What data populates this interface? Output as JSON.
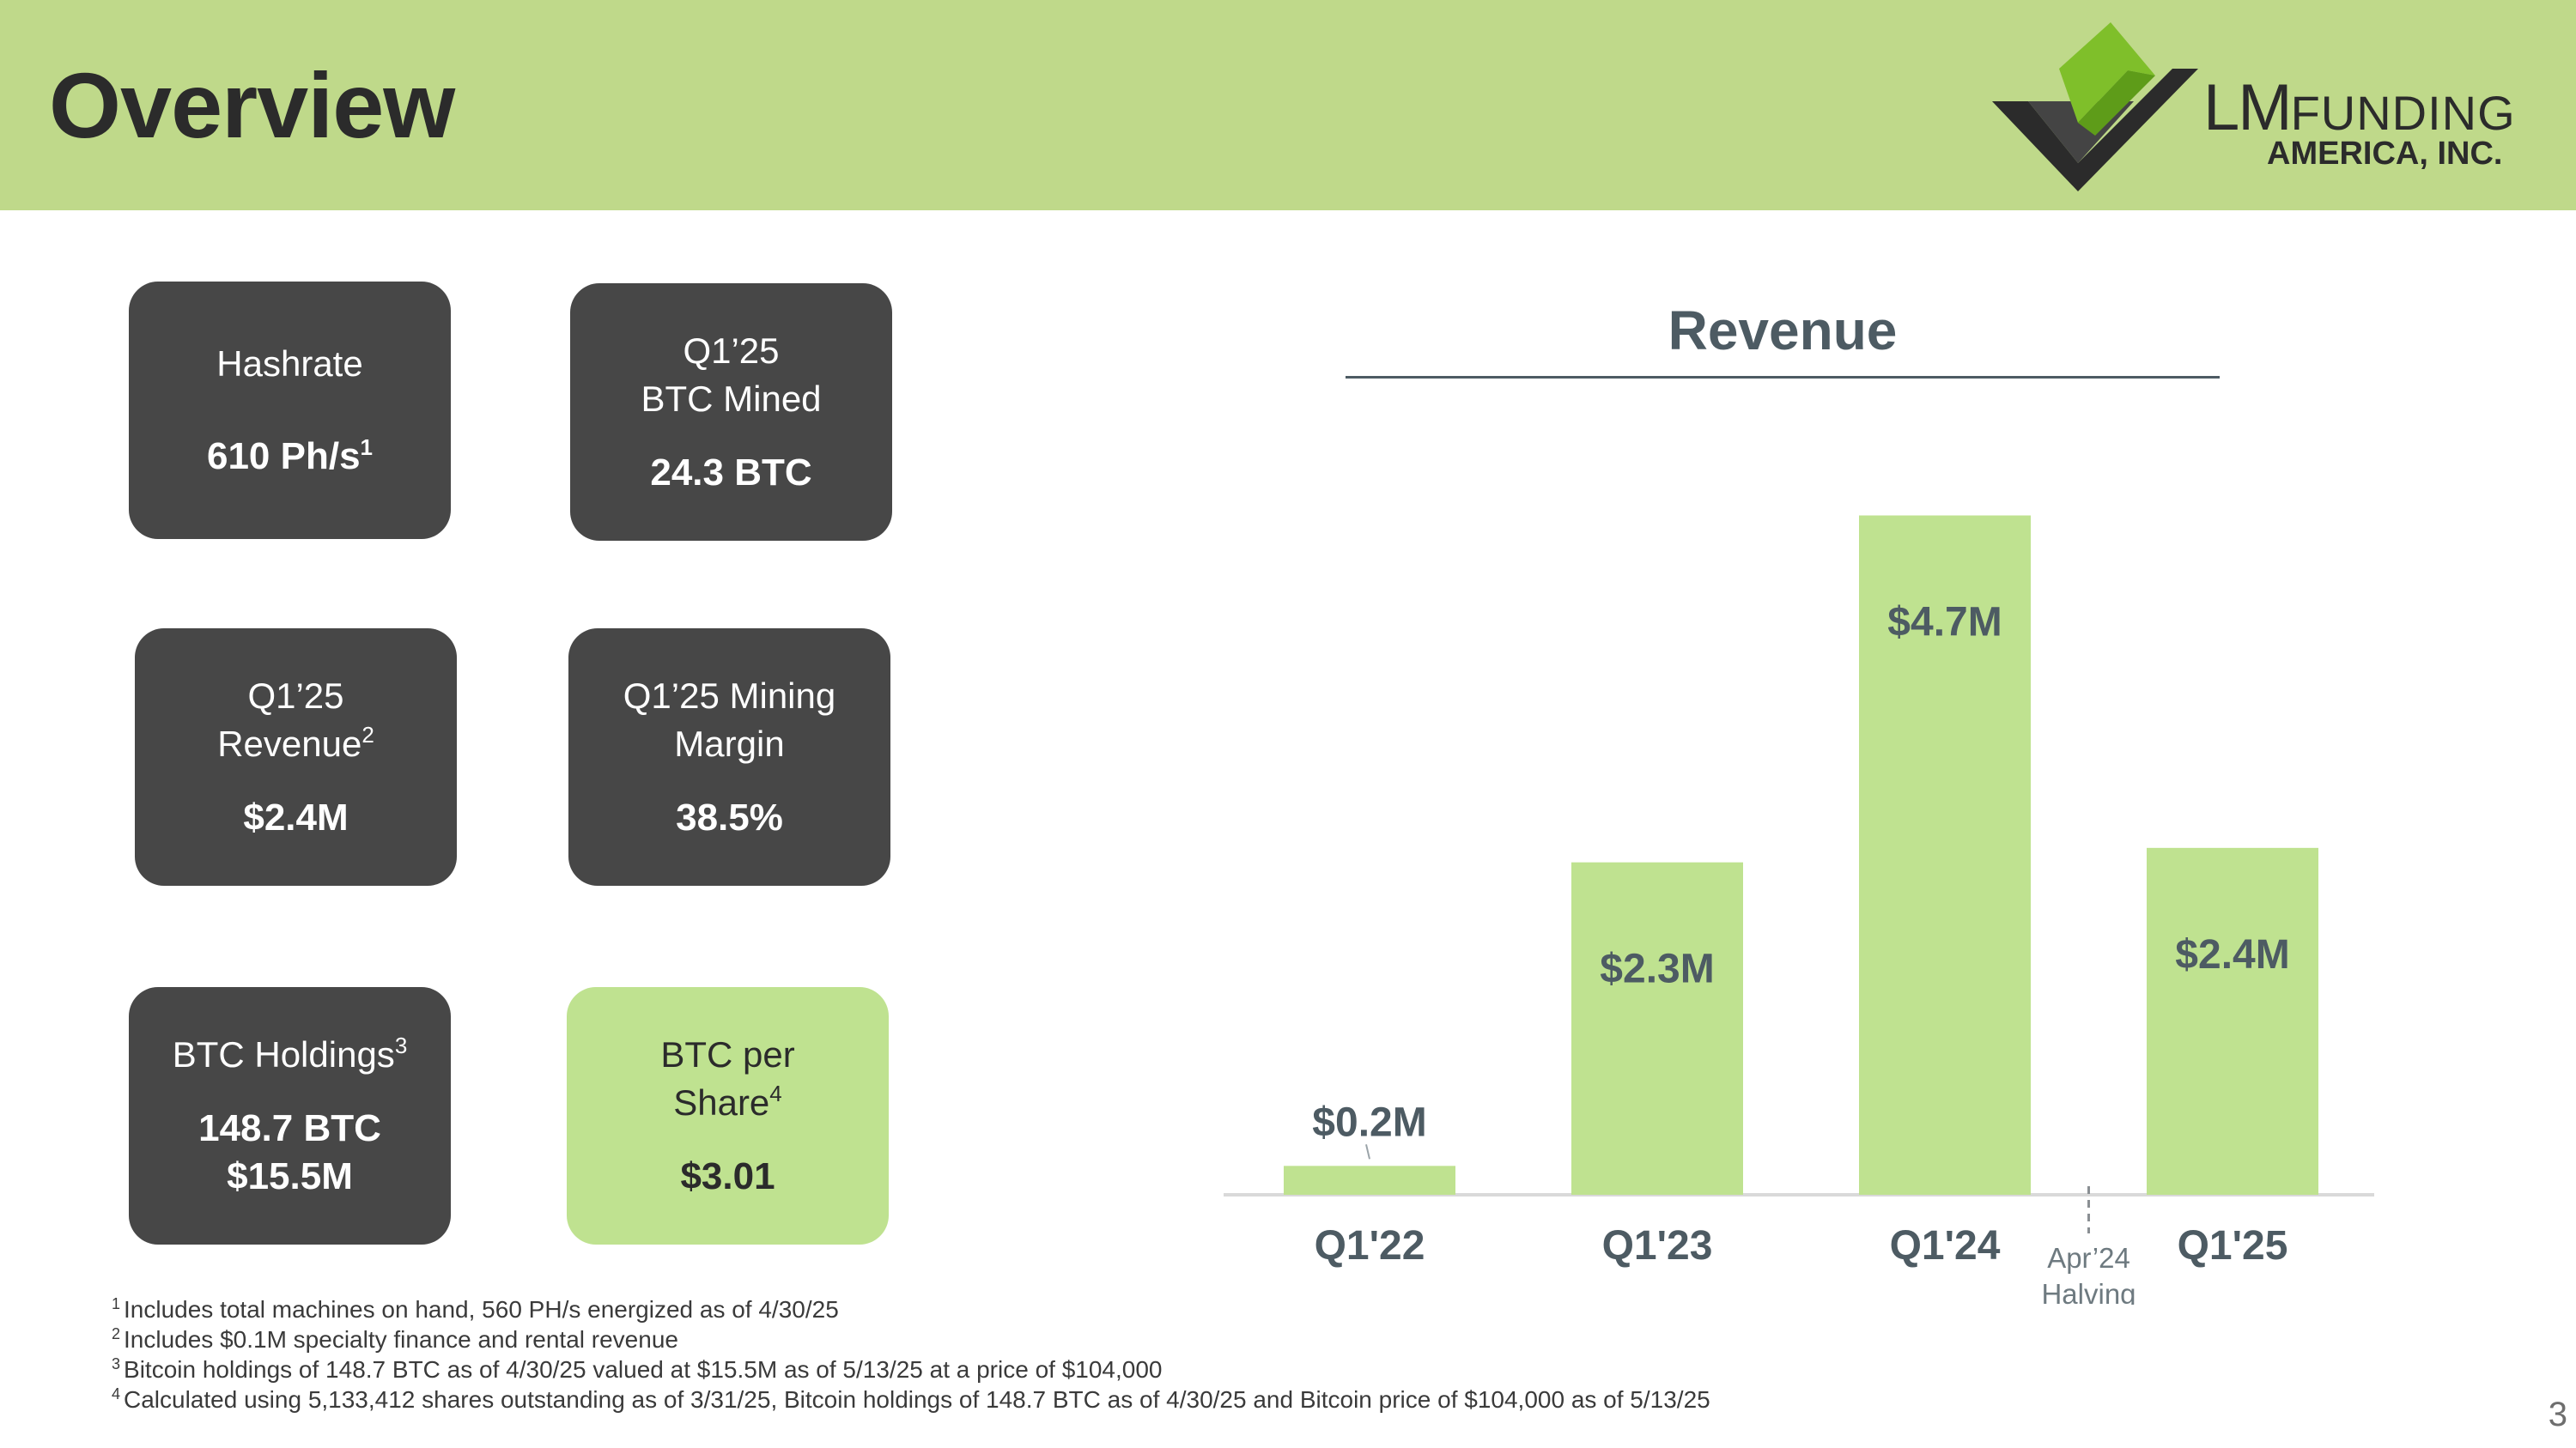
{
  "header": {
    "title": "Overview",
    "logo": {
      "primary": "LM",
      "secondary": "FUNDING",
      "subtitle": "AMERICA, INC."
    }
  },
  "metrics": [
    {
      "label_lines": [
        "Hashrate"
      ],
      "label_sup": "",
      "value_lines": [
        "610 Ph/s"
      ],
      "value_sup": "1",
      "style": "dark"
    },
    {
      "label_lines": [
        "Q1’25",
        "BTC Mined"
      ],
      "label_sup": "",
      "value_lines": [
        "24.3 BTC"
      ],
      "value_sup": "",
      "style": "dark"
    },
    {
      "label_lines": [
        "Q1’25",
        "Revenue"
      ],
      "label_sup": "2",
      "value_lines": [
        "$2.4M"
      ],
      "value_sup": "",
      "style": "dark"
    },
    {
      "label_lines": [
        "Q1’25 Mining",
        "Margin"
      ],
      "label_sup": "",
      "value_lines": [
        "38.5%"
      ],
      "value_sup": "",
      "style": "dark"
    },
    {
      "label_lines": [
        "BTC Holdings"
      ],
      "label_sup": "3",
      "value_lines": [
        "148.7 BTC",
        "$15.5M"
      ],
      "value_sup": "",
      "style": "dark"
    },
    {
      "label_lines": [
        "BTC per",
        "Share"
      ],
      "label_sup": "4",
      "value_lines": [
        "$3.01"
      ],
      "value_sup": "",
      "style": "green"
    }
  ],
  "chart_data": {
    "type": "bar",
    "title": "Revenue",
    "categories": [
      "Q1'22",
      "Q1'23",
      "Q1'24",
      "Q1'25"
    ],
    "values": [
      0.2,
      2.3,
      4.7,
      2.4
    ],
    "data_labels": [
      "$0.2M",
      "$2.3M",
      "$4.7M",
      "$2.4M"
    ],
    "unit": "$M",
    "ylim": [
      0,
      5
    ],
    "bar_color": "#bfe290",
    "label_color": "#4d5b63",
    "annotation": {
      "lines": [
        "Apr’24",
        "Halving"
      ],
      "between": [
        "Q1'24",
        "Q1'25"
      ]
    }
  },
  "footnotes": [
    {
      "num": "1",
      "text": "Includes total machines on hand, 560 PH/s energized as of 4/30/25"
    },
    {
      "num": "2",
      "text": "Includes $0.1M specialty finance and rental revenue"
    },
    {
      "num": "3",
      "text": "Bitcoin holdings of 148.7 BTC as of 4/30/25 valued at $15.5M as of 5/13/25 at a price of $104,000"
    },
    {
      "num": "4",
      "text": "Calculated using 5,133,412 shares outstanding as of 3/31/25, Bitcoin holdings of 148.7 BTC as of 4/30/25 and Bitcoin price of $104,000 as of 5/13/25"
    }
  ],
  "page_number": "3"
}
